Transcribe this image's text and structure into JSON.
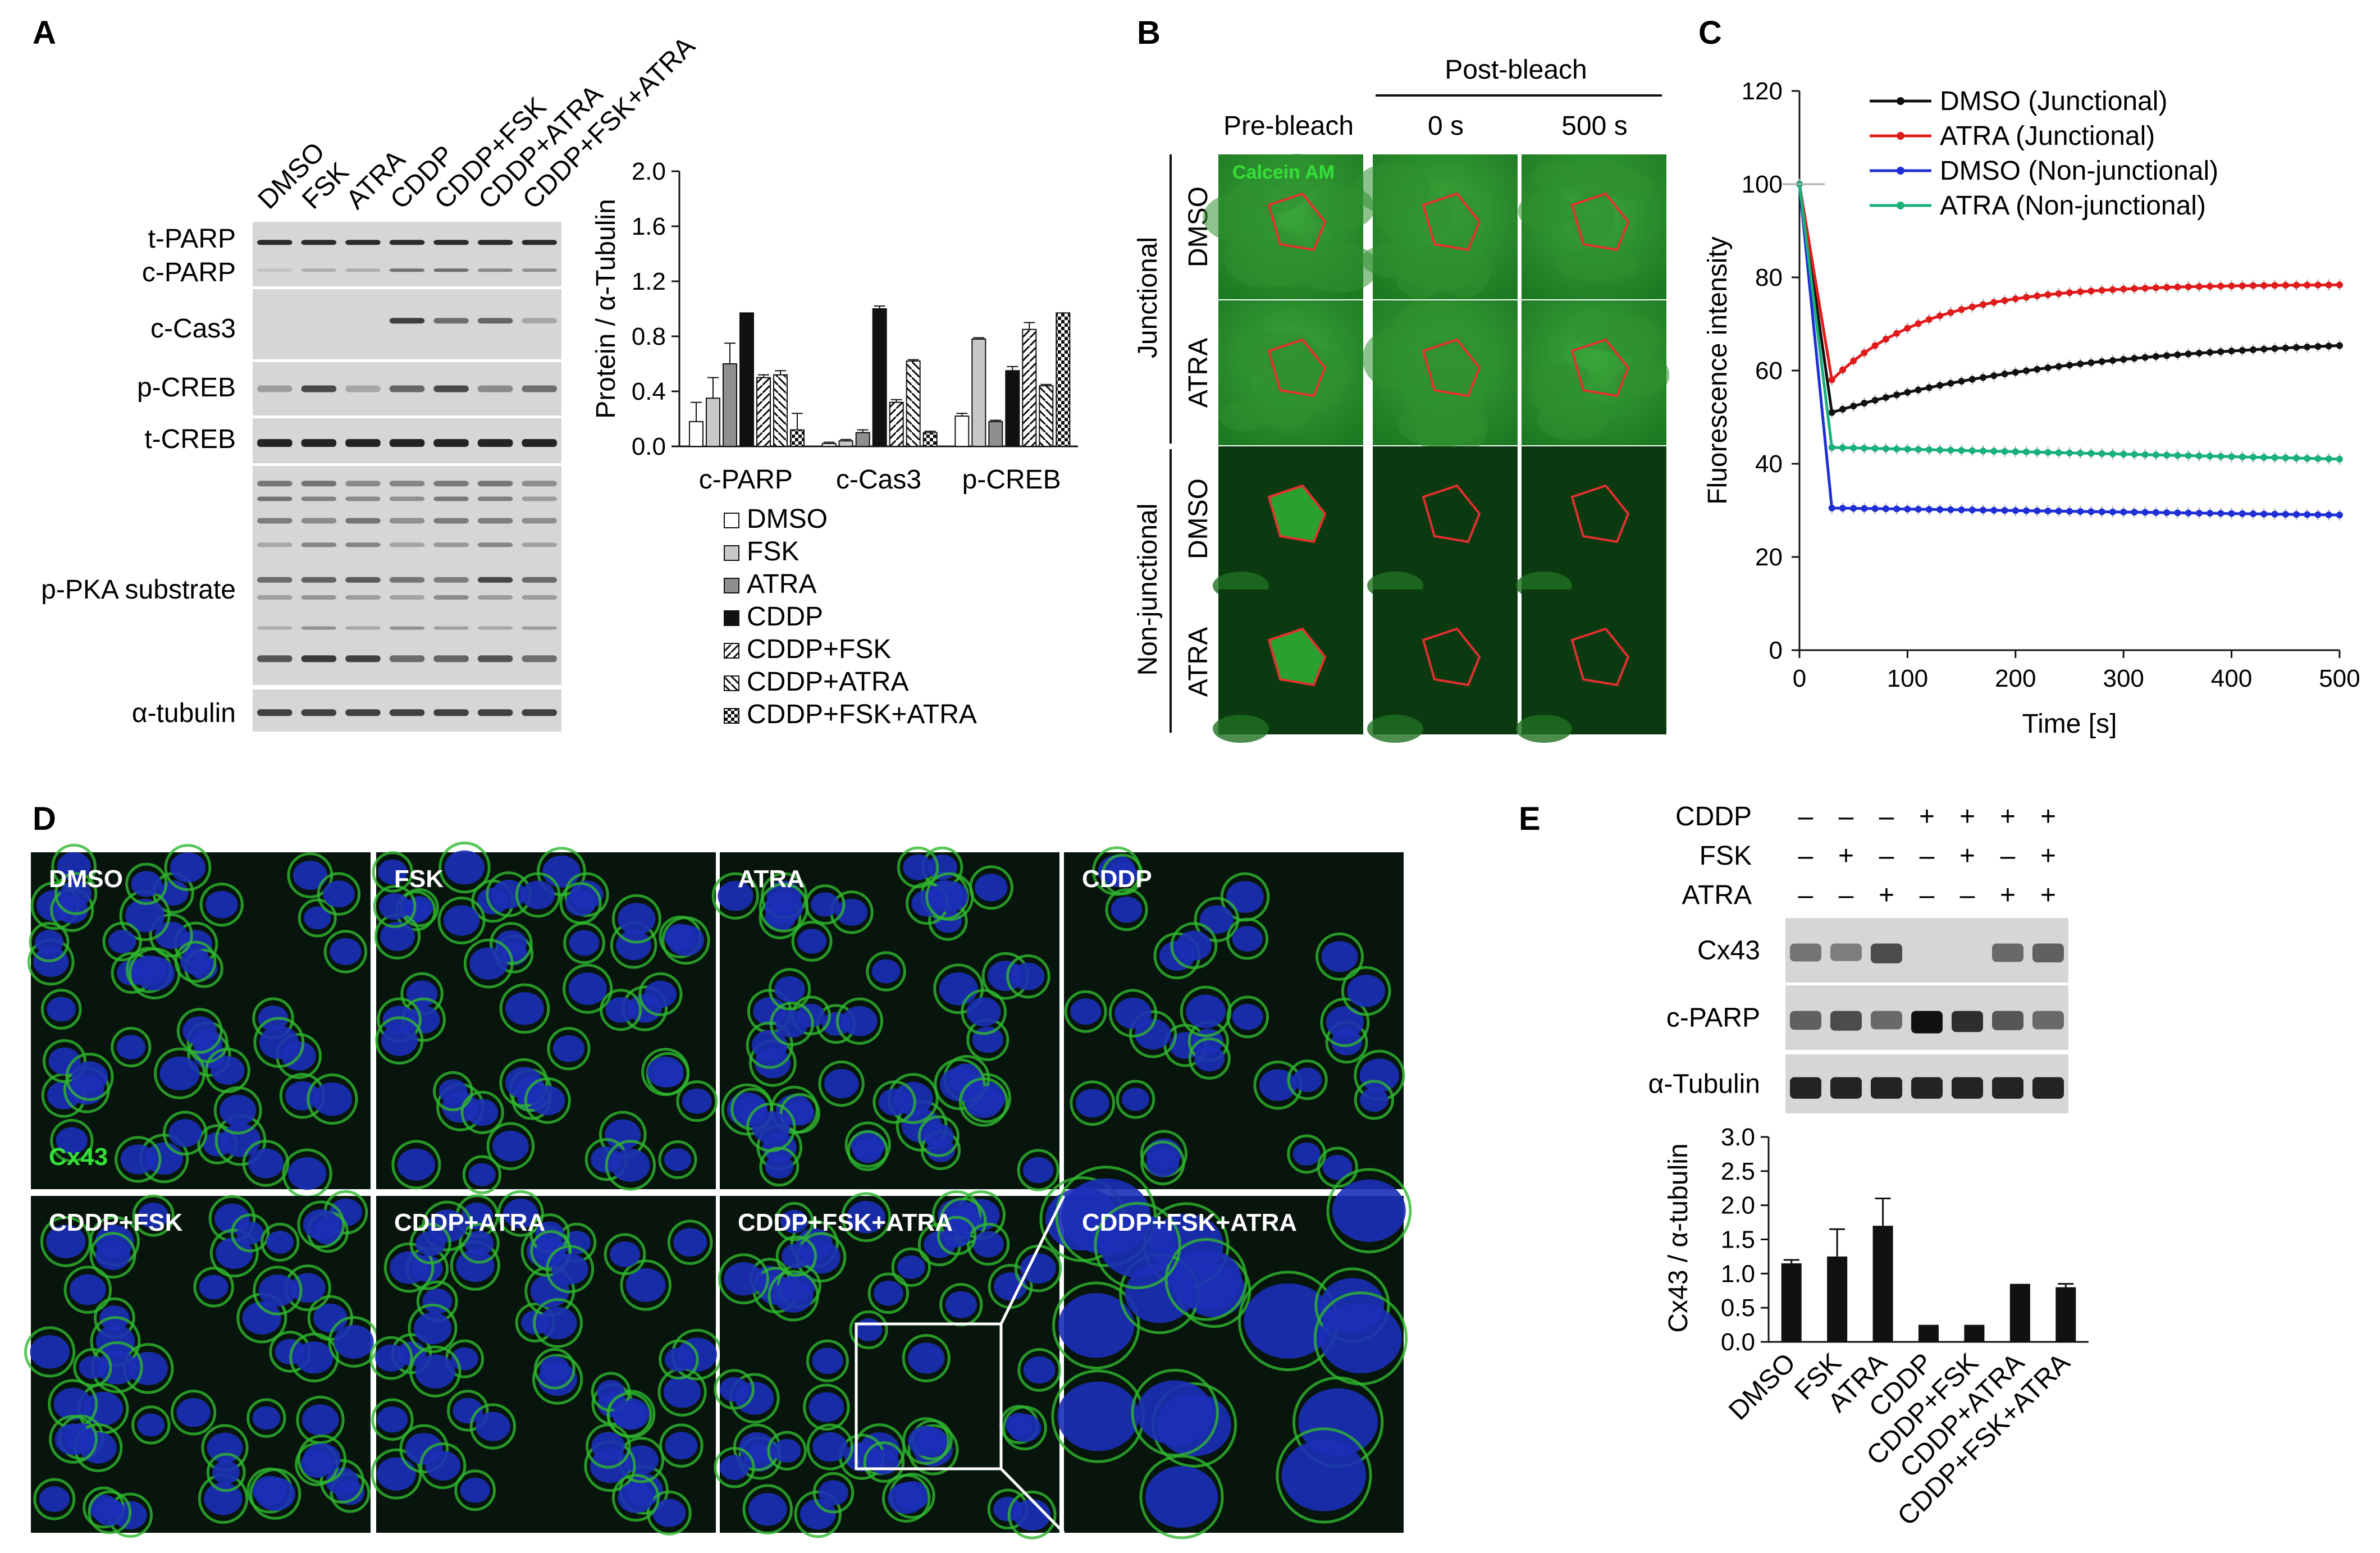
{
  "panels": {
    "A": "A",
    "B": "B",
    "C": "C",
    "D": "D",
    "E": "E"
  },
  "panelA": {
    "lanes": [
      "DMSO",
      "FSK",
      "ATRA",
      "CDDP",
      "CDDP+FSK",
      "CDDP+ATRA",
      "CDDP+FSK+ATRA"
    ],
    "blots": [
      "t-PARP",
      "c-PARP",
      "c-Cas3",
      "p-CREB",
      "t-CREB",
      "p-PKA substrate",
      "α-tubulin"
    ]
  },
  "panelB": {
    "header": "Post-bleach",
    "columns": [
      "Pre-bleach",
      "0 s",
      "500 s"
    ],
    "groups": [
      "Junctional",
      "Non-junctional"
    ],
    "rows": [
      "DMSO",
      "ATRA",
      "DMSO",
      "ATRA"
    ],
    "stain": "Calcein AM"
  },
  "panelD": {
    "tiles": [
      "DMSO",
      "FSK",
      "ATRA",
      "CDDP",
      "CDDP+FSK",
      "CDDP+ATRA",
      "CDDP+FSK+ATRA",
      "CDDP+FSK+ATRA"
    ],
    "stain": "Cx43"
  },
  "panelE": {
    "treatments": [
      "CDDP",
      "FSK",
      "ATRA"
    ],
    "signs": [
      [
        "–",
        "–",
        "–",
        "+",
        "+",
        "+",
        "+"
      ],
      [
        "–",
        "+",
        "–",
        "–",
        "+",
        "–",
        "+"
      ],
      [
        "–",
        "–",
        "+",
        "–",
        "–",
        "+",
        "+"
      ]
    ],
    "blots": [
      "Cx43",
      "c-PARP",
      "α-Tubulin"
    ]
  },
  "chart_data": [
    {
      "type": "bar",
      "panel": "A",
      "categories": [
        "c-PARP",
        "c-Cas3",
        "p-CREB"
      ],
      "ylabel": "Protein / α-Tubulin",
      "ylim": [
        0,
        2.0
      ],
      "yticks": [
        "0.0",
        "0.4",
        "0.8",
        "1.2",
        "1.6",
        "2.0"
      ],
      "legend_position": "bottom",
      "series": [
        {
          "name": "DMSO",
          "values": [
            0.18,
            0.02,
            0.22
          ],
          "errors": [
            0.14,
            0.01,
            0.02
          ]
        },
        {
          "name": "FSK",
          "values": [
            0.35,
            0.04,
            0.78
          ],
          "errors": [
            0.15,
            0.01,
            0.01
          ]
        },
        {
          "name": "ATRA",
          "values": [
            0.6,
            0.1,
            0.18
          ],
          "errors": [
            0.15,
            0.02,
            0.01
          ]
        },
        {
          "name": "CDDP",
          "values": [
            0.97,
            1.0,
            0.55
          ],
          "errors": [
            0.0,
            0.02,
            0.03
          ]
        },
        {
          "name": "CDDP+FSK",
          "values": [
            0.5,
            0.32,
            0.85
          ],
          "errors": [
            0.02,
            0.02,
            0.05
          ]
        },
        {
          "name": "CDDP+ATRA",
          "values": [
            0.52,
            0.62,
            0.44
          ],
          "errors": [
            0.03,
            0.01,
            0.01
          ]
        },
        {
          "name": "CDDP+FSK+ATRA",
          "values": [
            0.12,
            0.1,
            0.97
          ],
          "errors": [
            0.12,
            0.01,
            0.0
          ]
        }
      ]
    },
    {
      "type": "line",
      "panel": "C",
      "xlabel": "Time [s]",
      "ylabel": "Fluorescence intensity",
      "xlim": [
        0,
        500
      ],
      "ylim": [
        0,
        120
      ],
      "xticks": [
        "0",
        "100",
        "200",
        "300",
        "400",
        "500"
      ],
      "yticks": [
        "0",
        "20",
        "40",
        "60",
        "80",
        "100",
        "120"
      ],
      "legend_position": "top-right",
      "series": [
        {
          "name": "DMSO (Junctional)",
          "color": "#111111",
          "plateau": 67.5,
          "drop": 51
        },
        {
          "name": "ATRA (Junctional)",
          "color": "#e01b1b",
          "plateau": 78.5,
          "drop": 58
        },
        {
          "name": "DMSO (Non-junctional)",
          "color": "#1f2fd6",
          "plateau": 29,
          "drop": 30.5
        },
        {
          "name": "ATRA (Non-junctional)",
          "color": "#19b07a",
          "plateau": 41,
          "drop": 43.5
        }
      ]
    },
    {
      "type": "bar",
      "panel": "E",
      "categories": [
        "DMSO",
        "FSK",
        "ATRA",
        "CDDP",
        "CDDP+FSK",
        "CDDP+ATRA",
        "CDDP+FSK+ATRA"
      ],
      "values": [
        1.15,
        1.25,
        1.7,
        0.25,
        0.25,
        0.85,
        0.8
      ],
      "errors": [
        0.05,
        0.4,
        0.4,
        0.0,
        0.0,
        0.0,
        0.05
      ],
      "ylabel": "Cx43 / α-tubulin",
      "ylim": [
        0,
        3.0
      ],
      "yticks": [
        "0.0",
        "0.5",
        "1.0",
        "1.5",
        "2.0",
        "2.5",
        "3.0"
      ]
    }
  ]
}
